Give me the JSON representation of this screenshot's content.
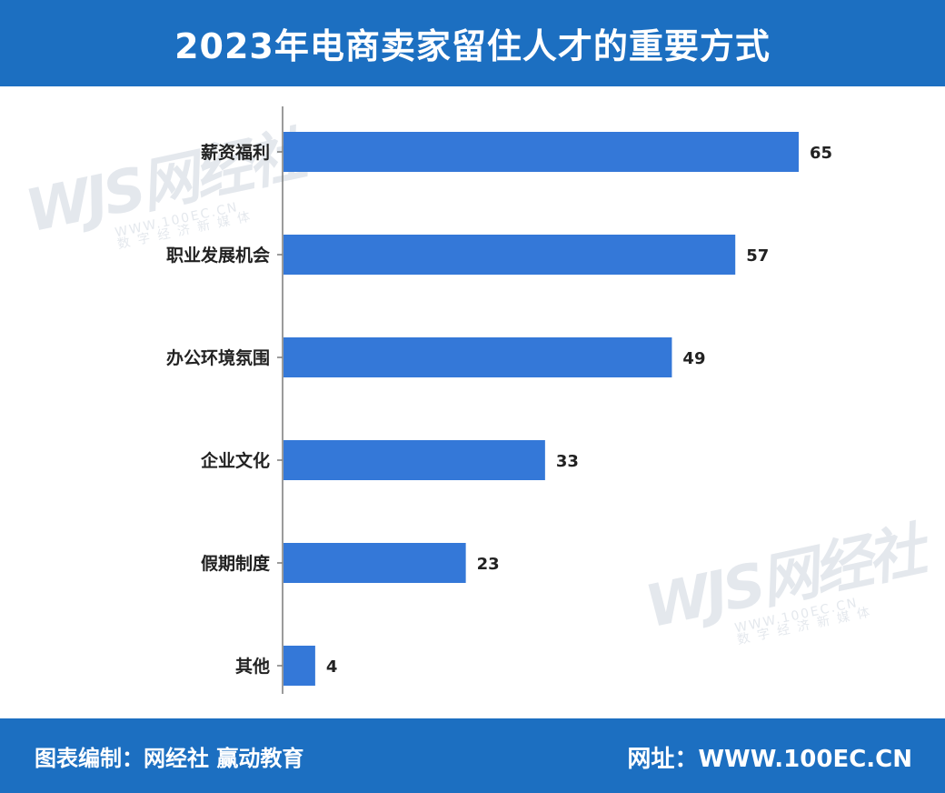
{
  "header": {
    "title": "2023年电商卖家留住人才的重要方式"
  },
  "footer": {
    "credit_label": "图表编制：",
    "credit_value": "网经社 赢动教育",
    "url_label": "网址：",
    "url_value": "WWW.100EC.CN"
  },
  "watermark": {
    "logo": "WJS网经社",
    "url": "WWW.100EC.CN",
    "tagline": "数字经济新媒体"
  },
  "colors": {
    "bar": "#3478d8",
    "header_bg": "#1c6fc1",
    "axis": "#7a7a7a"
  },
  "chart_data": {
    "type": "bar",
    "orientation": "horizontal",
    "categories": [
      "薪资福利",
      "职业发展机会",
      "办公环境氛围",
      "企业文化",
      "假期制度",
      "其他"
    ],
    "values": [
      65,
      57,
      49,
      33,
      23,
      4
    ],
    "xlim": [
      0,
      70
    ],
    "grid": false,
    "legend": "none"
  }
}
